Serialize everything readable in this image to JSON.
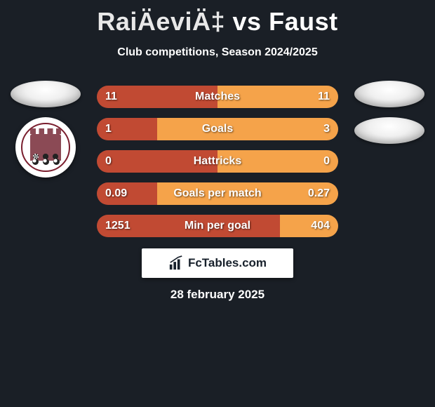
{
  "header": {
    "player1": "RaiÄeviÄ‡",
    "vs": "vs",
    "player2": "Faust",
    "subtitle": "Club competitions, Season 2024/2025"
  },
  "colors": {
    "left_seg": "#c14a33",
    "right_seg": "#f5a34a",
    "bar_bg": "#2a2f36"
  },
  "stats": [
    {
      "label": "Matches",
      "left_val": "11",
      "right_val": "11",
      "left_pct": 50,
      "right_pct": 50
    },
    {
      "label": "Goals",
      "left_val": "1",
      "right_val": "3",
      "left_pct": 25,
      "right_pct": 75
    },
    {
      "label": "Hattricks",
      "left_val": "0",
      "right_val": "0",
      "left_pct": 50,
      "right_pct": 50
    },
    {
      "label": "Goals per match",
      "left_val": "0.09",
      "right_val": "0.27",
      "left_pct": 25,
      "right_pct": 75
    },
    {
      "label": "Min per goal",
      "left_val": "1251",
      "right_val": "404",
      "left_pct": 76,
      "right_pct": 24
    }
  ],
  "brand": {
    "text": "FcTables.com"
  },
  "date": "28 february 2025"
}
